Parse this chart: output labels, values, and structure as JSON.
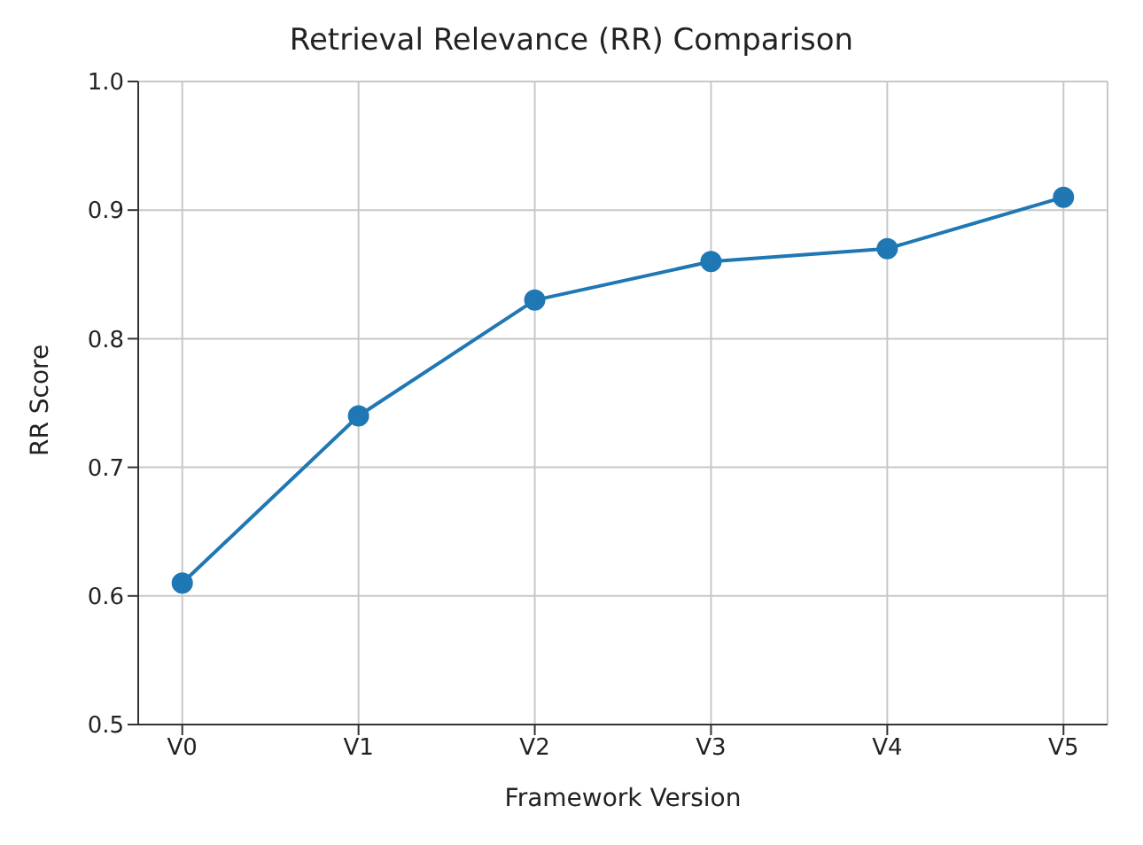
{
  "chart_data": {
    "type": "line",
    "title": "Retrieval Relevance (RR) Comparison",
    "xlabel": "Framework Version",
    "ylabel": "RR Score",
    "categories": [
      "V0",
      "V1",
      "V2",
      "V3",
      "V4",
      "V5"
    ],
    "series": [
      {
        "color": "#1f77b4",
        "values": [
          0.61,
          0.74,
          0.83,
          0.86,
          0.87,
          0.91
        ]
      }
    ],
    "ylim": [
      0.5,
      1.0
    ],
    "yticks": [
      0.5,
      0.6,
      0.7,
      0.8,
      0.9,
      {
        "value": 1.0,
        "label": "1.0"
      }
    ],
    "grid": true,
    "legend": false,
    "marker": "circle",
    "line_style": "solid"
  }
}
